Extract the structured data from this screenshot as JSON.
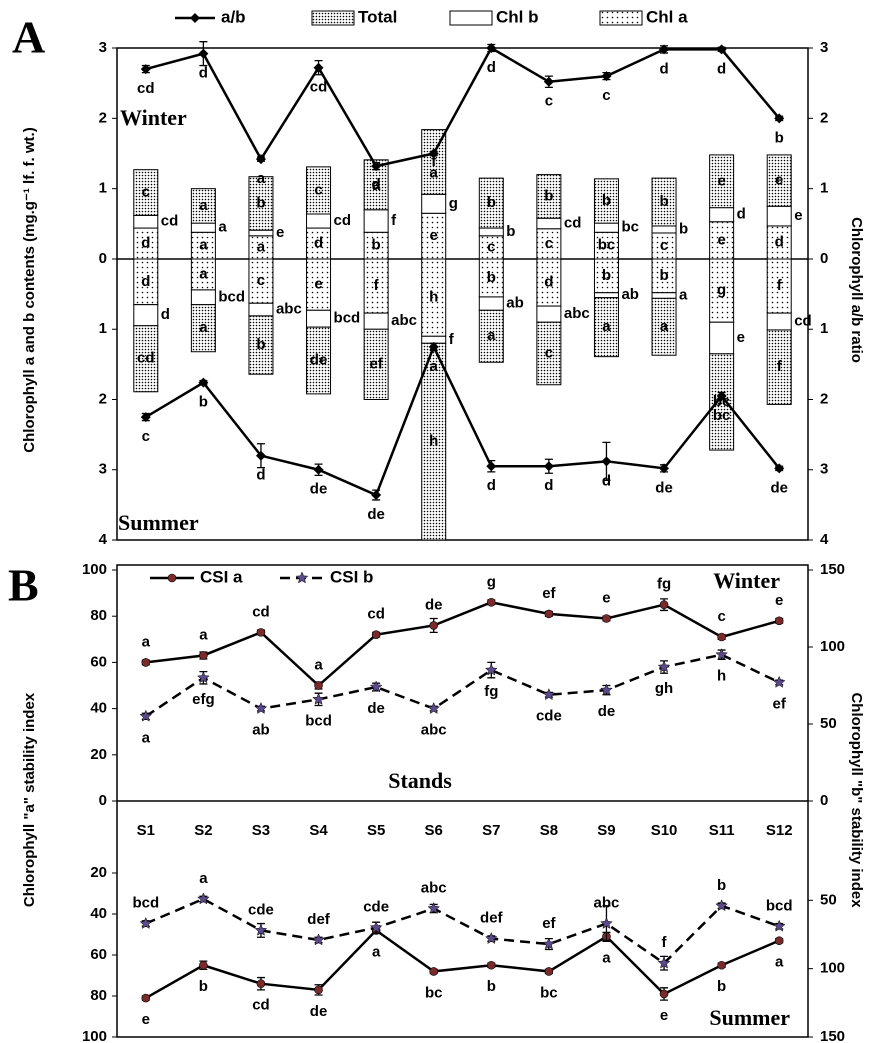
{
  "chart_data": [
    {
      "type": "bar",
      "panel": "A",
      "ylabel": "Chlorophyll a and b contents (mg.g⁻¹ lf. f. wt.)",
      "y2label": "Chlorophyll a/b ratio",
      "winter": {
        "label": "Winter",
        "ylim": [
          0,
          3
        ],
        "yticks": [
          0,
          1,
          2,
          3
        ],
        "y2lim": [
          0,
          3
        ],
        "y2ticks": [
          0,
          1,
          2,
          3
        ]
      },
      "summer": {
        "label": "Summer",
        "ylim": [
          0,
          4
        ],
        "yticks": [
          1,
          2,
          3,
          4
        ],
        "y2lim": [
          0,
          4
        ],
        "y2ticks": [
          1,
          2,
          3,
          4
        ]
      },
      "series": [
        {
          "name": "Chl a",
          "color": "#000000",
          "pattern": "sparse",
          "winter": [
            0.44,
            0.38,
            0.33,
            0.44,
            0.38,
            0.65,
            0.33,
            0.43,
            0.38,
            0.37,
            0.53,
            0.47
          ],
          "winter_labels": [
            "d",
            "a",
            "a",
            "d",
            "b",
            "e",
            "c",
            "c",
            "bc",
            "c",
            "e",
            "d"
          ],
          "summer": [
            0.65,
            0.44,
            0.63,
            0.73,
            0.77,
            1.1,
            0.54,
            0.67,
            0.48,
            0.48,
            0.9,
            0.77
          ],
          "summer_labels": [
            "d",
            "a",
            "c",
            "e",
            "f",
            "h",
            "b",
            "d",
            "b",
            "b",
            "g",
            "f"
          ]
        },
        {
          "name": "Chl b",
          "color": "#ffffff",
          "pattern": "solid",
          "winter": [
            0.18,
            0.13,
            0.08,
            0.2,
            0.32,
            0.27,
            0.11,
            0.15,
            0.13,
            0.1,
            0.2,
            0.28
          ],
          "winter_labels": [
            "cd",
            "a",
            "e",
            "cd",
            "f",
            "g",
            "b",
            "cd",
            "bc",
            "b",
            "d",
            "e"
          ],
          "summer": [
            0.3,
            0.21,
            0.18,
            0.24,
            0.23,
            0.1,
            0.19,
            0.23,
            0.07,
            0.08,
            0.45,
            0.24
          ],
          "summer_labels": [
            "d",
            "bcd",
            "abc",
            "bcd",
            "abc",
            "f",
            "ab",
            "abc",
            "ab",
            "a",
            "e",
            "cd"
          ]
        },
        {
          "name": "Total",
          "color": "#000000",
          "pattern": "dense",
          "winter": [
            0.65,
            0.49,
            0.76,
            0.67,
            0.71,
            0.92,
            0.71,
            0.62,
            0.63,
            0.68,
            0.75,
            0.73
          ],
          "winter_labels": [
            "c",
            "a",
            "b",
            "c",
            "d",
            "f",
            "b",
            "b",
            "b",
            "b",
            "e",
            "e"
          ],
          "summer": [
            0.94,
            0.67,
            0.83,
            0.95,
            1.0,
            2.8,
            0.74,
            0.89,
            0.84,
            0.81,
            1.37,
            1.06
          ],
          "summer_labels": [
            "cd",
            "a",
            "b",
            "de",
            "ef",
            "h",
            "a",
            "c",
            "a",
            "a",
            "bc",
            "f"
          ]
        },
        {
          "name": "a/b",
          "color": "#000000",
          "axis": "y2",
          "winter": [
            2.7,
            2.92,
            1.42,
            2.72,
            1.32,
            1.5,
            3.0,
            2.52,
            2.6,
            2.98,
            2.98,
            2.0
          ],
          "winter_errors": [
            0.05,
            0.17,
            0.03,
            0.1,
            0.05,
            0.03,
            0.05,
            0.08,
            0.05,
            0.05,
            0.03,
            0.03
          ],
          "winter_labels": [
            "cd",
            "d",
            "a",
            "cd",
            "a",
            "a",
            "d",
            "c",
            "c",
            "d",
            "d",
            "b"
          ],
          "summer": [
            2.25,
            1.76,
            2.8,
            3.0,
            3.36,
            1.25,
            2.95,
            2.95,
            2.88,
            2.98,
            1.95,
            2.98
          ],
          "summer_errors": [
            0.05,
            0.03,
            0.17,
            0.08,
            0.07,
            0.05,
            0.08,
            0.1,
            0.27,
            0.05,
            0.05,
            0.03
          ],
          "summer_labels": [
            "c",
            "b",
            "d",
            "de",
            "de",
            "a",
            "d",
            "d",
            "d",
            "de",
            "bc",
            "de"
          ]
        }
      ]
    },
    {
      "type": "line",
      "panel": "B",
      "xlabel": "Stands",
      "categories": [
        "S1",
        "S2",
        "S3",
        "S4",
        "S5",
        "S6",
        "S7",
        "S8",
        "S9",
        "S10",
        "S11",
        "S12"
      ],
      "ylabel": "Chlorophyll \"a\" stability index",
      "y2label": "Chlorophyll \"b\" stability index",
      "winter": {
        "label": "Winter",
        "ylim": [
          0,
          100
        ],
        "yticks": [
          0,
          20,
          40,
          60,
          80,
          100
        ],
        "y2lim": [
          0,
          150
        ],
        "y2ticks": [
          0,
          50,
          100,
          150
        ]
      },
      "summer": {
        "label": "Summer",
        "ylim": [
          0,
          100
        ],
        "yticks": [
          20,
          40,
          60,
          80,
          100
        ],
        "y2lim": [
          0,
          150
        ],
        "y2ticks": [
          50,
          100,
          150
        ]
      },
      "series": [
        {
          "name": "CSI a",
          "color": "#000000",
          "marker": "circle",
          "marker_color": "#7a2a2a",
          "dashed": false,
          "winter": [
            60,
            63,
            73,
            50,
            72,
            76,
            86,
            81,
            79,
            85,
            71,
            78
          ],
          "winter_errors": [
            1,
            1.5,
            1,
            1.5,
            1,
            3,
            1,
            1,
            1,
            2.5,
            1,
            1
          ],
          "winter_labels": [
            "a",
            "a",
            "cd",
            "a",
            "cd",
            "de",
            "g",
            "ef",
            "e",
            "fg",
            "c",
            "e"
          ],
          "summer": [
            81,
            65,
            74,
            77,
            48,
            68,
            65,
            68,
            51,
            79,
            65,
            53
          ],
          "summer_errors": [
            1,
            2,
            3,
            2.5,
            1.5,
            1,
            1,
            1,
            2,
            3,
            1,
            1
          ],
          "summer_labels": [
            "e",
            "b",
            "cd",
            "de",
            "a",
            "bc",
            "b",
            "bc",
            "a",
            "e",
            "b",
            "a"
          ]
        },
        {
          "name": "CSI b",
          "color": "#000000",
          "marker": "star",
          "marker_color": "#5a4a8a",
          "dashed": true,
          "axis": "y2",
          "winter": [
            55,
            80,
            60,
            66,
            74,
            60,
            85,
            69,
            72,
            87,
            95,
            77
          ],
          "winter_errors": [
            2,
            4,
            1.5,
            4,
            2.5,
            1.5,
            5,
            1.5,
            3,
            4,
            3,
            1.5
          ],
          "winter_labels": [
            "a",
            "efg",
            "ab",
            "bcd",
            "de",
            "abc",
            "fg",
            "cde",
            "de",
            "gh",
            "h",
            "ef"
          ],
          "summer": [
            67,
            49,
            72,
            79,
            70,
            56,
            78,
            82,
            67,
            96,
            54,
            69
          ],
          "summer_errors": [
            2,
            2,
            5,
            2,
            4,
            3,
            2,
            4,
            13,
            5,
            2,
            2
          ],
          "summer_labels": [
            "bcd",
            "a",
            "cde",
            "def",
            "cde",
            "abc",
            "def",
            "ef",
            "abc",
            "f",
            "b",
            "bcd"
          ]
        }
      ]
    }
  ]
}
